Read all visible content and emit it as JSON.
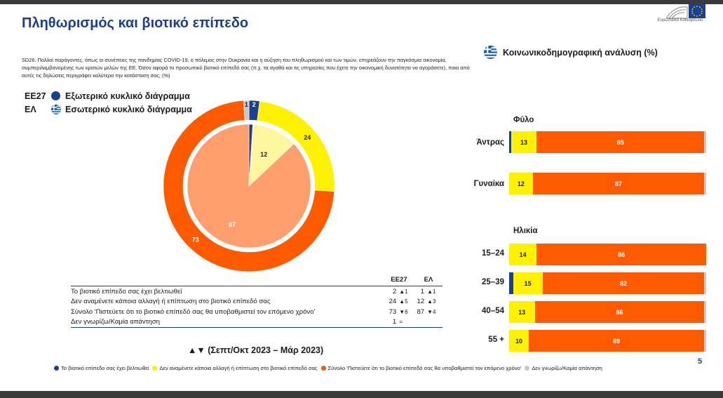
{
  "title": "Πληθωρισμός και βιοτικό επίπεδο",
  "logo_text": "Ευρωπαϊκό Κοινοβούλιο",
  "question": "SD26. Πολλοί παράγοντες, όπως οι συνέπειες της πανδημίας COVID-19, ο πόλεμος στην Ουκρανία και η αύξηση του πληθωρισμού και των τιμών, επηρεάζουν την παγκόσμια οικονομία, συμπεριλαμβανομένης των κρατών μελών της ΕΕ. Όσον αφορά το προσωπικό βιοτικό επίπεδό σας (π.χ. τα αγαθά και τις υπηρεσίες που έχετε την οικονομική δυνατότητα να αγοράσετε), ποια από αυτές τις δηλώσεις περιγράφει καλύτερα την κατάσταση σας; (%)",
  "legend_top": [
    {
      "code": "ΕΕ27",
      "label": "Εξωτερικό κυκλικό διάγραμμα"
    },
    {
      "code": "ΕΛ",
      "label": "Εσωτερικό κυκλικό διάγραμμα"
    }
  ],
  "colors": {
    "blue": "#1c3f8f",
    "yellow": "#fff200",
    "orange": "#ff5a00",
    "grey": "#c8c8c8",
    "lightyellow": "#fff7a0",
    "salmon": "#ff9e6e"
  },
  "chart_data": [
    {
      "type": "pie",
      "name": "ΕΕ27",
      "categories": [
        "Το βιοτικό επίπεδο σας έχει βελτιωθεί",
        "Δεν αναμένετε κάποια αλλαγή ή επίπτωση στο βιοτικό επίπεδό σας",
        "Σύνολο 'Πιστεύετε ότι το βιοτικό επίπεδό σας θα υποβαθμιστεί τον επόμενο χρόνο'",
        "Δεν γνωρίζω/Καμία απάντηση"
      ],
      "values": [
        2,
        24,
        73,
        1
      ],
      "labels": [
        "2",
        "24",
        "73",
        "1"
      ]
    },
    {
      "type": "pie",
      "name": "ΕΛ",
      "categories": [
        "Το βιοτικό επίπεδο σας έχει βελτιωθεί",
        "Δεν αναμένετε κάποια αλλαγή ή επίπτωση στο βιοτικό επίπεδό σας",
        "Σύνολο 'Πιστεύετε ότι το βιοτικό επίπεδό σας θα υποβαθμιστεί τον επόμενο χρόνο'",
        "Δεν γνωρίζω/Καμία απάντηση"
      ],
      "values": [
        1,
        12,
        87,
        0
      ],
      "labels": [
        "",
        "12",
        "87",
        ""
      ]
    },
    {
      "type": "bar",
      "stacked": true,
      "orientation": "horizontal",
      "title": "Κοινωνικοδημογραφική ανάλυση (%)",
      "groups": [
        {
          "name": "Φύλο",
          "categories": [
            "Άντρας",
            "Γυναίκα"
          ]
        },
        {
          "name": "Ηλικία",
          "categories": [
            "15-24",
            "25-39",
            "40-54",
            "55 +"
          ]
        }
      ],
      "categories": [
        "Άντρας",
        "Γυναίκα",
        "15-24",
        "25-39",
        "40-54",
        "55 +"
      ],
      "series": [
        {
          "name": "Το βιοτικό επίπεδο σας έχει βελτιωθεί",
          "values": [
            1,
            0,
            0,
            2,
            0,
            0
          ],
          "labels": [
            "",
            "",
            "",
            "",
            "",
            ""
          ]
        },
        {
          "name": "Δεν αναμένετε κάποια αλλαγή ή επίπτωση στο βιοτικό επίπεδό σας",
          "values": [
            13,
            12,
            14,
            15,
            13,
            10
          ],
          "labels": [
            "13",
            "12",
            "14",
            "15",
            "13",
            "10"
          ]
        },
        {
          "name": "Σύνολο 'Πιστεύετε ότι το βιοτικό επίπεδό σας θα υποβαθμιστεί τον επόμενο χρόνο'",
          "values": [
            85,
            87,
            86,
            82,
            86,
            89
          ],
          "labels": [
            "85",
            "87",
            "86",
            "82",
            "86",
            "89"
          ]
        },
        {
          "name": "Δεν γνωρίζω/Καμία απάντηση",
          "values": [
            1,
            1,
            0,
            1,
            1,
            1
          ],
          "labels": [
            "",
            "",
            "",
            "",
            "",
            ""
          ]
        }
      ],
      "xlim": [
        0,
        100
      ]
    }
  ],
  "table": {
    "headers": [
      "ΕΕ27",
      "ΕΛ"
    ],
    "rows": [
      {
        "label": "Το βιοτικό επίπεδο σας έχει βελτιωθεί",
        "eu": "2",
        "eu_trend": "▲1",
        "el": "1",
        "el_trend": "▲1"
      },
      {
        "label": "Δεν αναμένετε κάποια αλλαγή ή επίπτωση στο βιοτικό επίπεδό σας",
        "eu": "24",
        "eu_trend": "▲5",
        "el": "12",
        "el_trend": "▲3"
      },
      {
        "label": "Σύνολο 'Πιστεύετε ότι το βιοτικό επίπεδό σας θα υποβαθμιστεί τον επόμενο χρόνο'",
        "eu": "73",
        "eu_trend": "▼6",
        "el": "87",
        "el_trend": "▼4"
      },
      {
        "label": "Δεν γνωρίζω/Καμία απάντηση",
        "eu": "1",
        "eu_trend": "=",
        "el": "",
        "el_trend": ""
      }
    ]
  },
  "period": "▲▼ (Σεπτ/Οκτ 2023 – Μάρ 2023)",
  "legend_bottom": [
    "Το βιοτικό επίπεδο σας έχει βελτιωθεί",
    "Δεν αναμένετε κάποια αλλαγή ή επίπτωση στο βιοτικό επίπεδό σας",
    "Σύνολο 'Πιστεύετε ότι το βιοτικό επίπεδό σας θα υποβαθμιστεί τον επόμενο χρόνο'",
    "Δεν γνωρίζω/Καμία απάντηση"
  ],
  "right_header": "Κοινωνικοδημογραφική ανάλυση (%)",
  "sections": {
    "gender": "Φύλο",
    "age": "Ηλικία"
  },
  "bar_labels": [
    "Άντρας",
    "Γυναίκα",
    "15–24",
    "25–39",
    "40–54",
    "55 +"
  ],
  "page_number": "5"
}
